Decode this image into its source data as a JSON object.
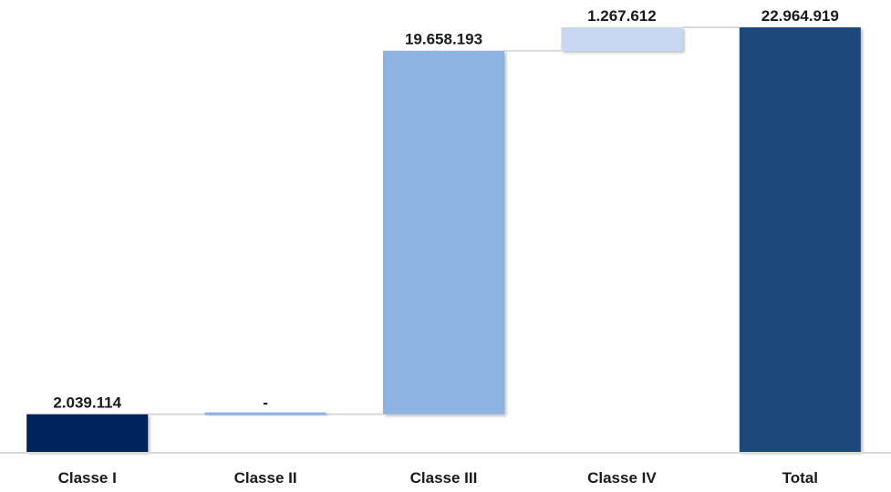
{
  "chart_data": {
    "type": "bar",
    "subtype": "waterfall",
    "title": "",
    "xlabel": "",
    "ylabel": "",
    "categories": [
      "Classe I",
      "Classe II",
      "Classe III",
      "Classe IV",
      "Total"
    ],
    "values": [
      2039114,
      0,
      19658193,
      1267612,
      22964919
    ],
    "value_labels": [
      "2.039.114",
      "-",
      "19.658.193",
      "1.267.612",
      "22.964.919"
    ],
    "ylim": [
      0,
      23500000
    ],
    "grid": false,
    "legend": "none",
    "colors": [
      "#00205c",
      "#8db3e2",
      "#8db3e2",
      "#c6d9f1",
      "#1f497d"
    ],
    "connector_color": "#d9d9d9",
    "axis_color": "#d9d9d9"
  }
}
